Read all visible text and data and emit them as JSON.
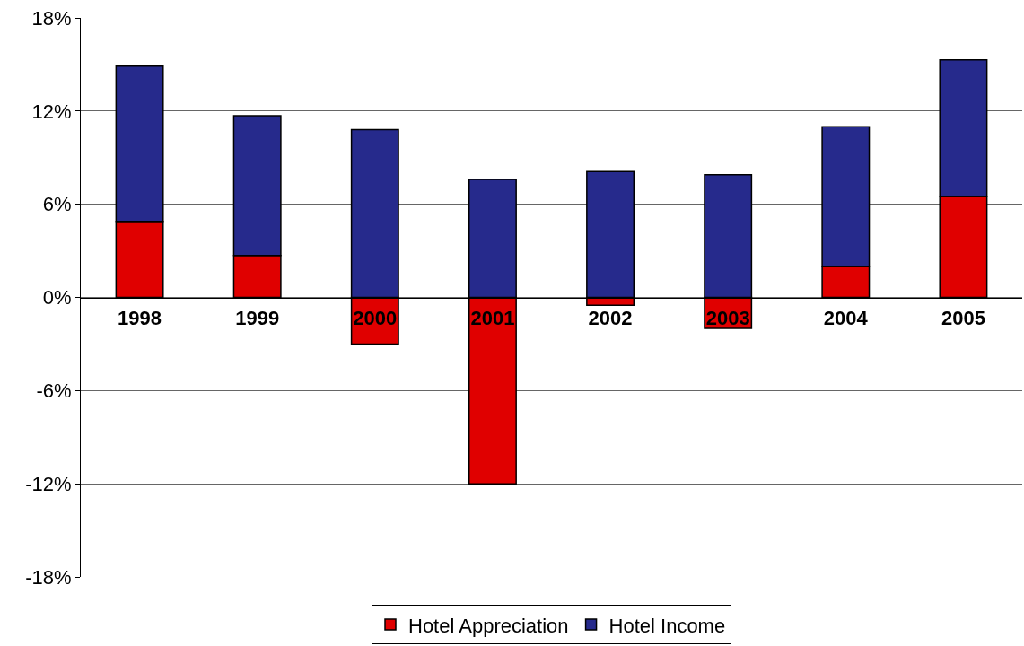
{
  "chart_data": {
    "type": "bar",
    "stacked": true,
    "categories": [
      "1998",
      "1999",
      "2000",
      "2001",
      "2002",
      "2003",
      "2004",
      "2005"
    ],
    "series": [
      {
        "name": "Hotel Appreciation",
        "color": "#e00000",
        "values": [
          4.9,
          2.7,
          -3.0,
          -12.0,
          -0.5,
          -2.0,
          2.0,
          6.5
        ]
      },
      {
        "name": "Hotel Income",
        "color": "#262a8c",
        "values": [
          10.0,
          9.0,
          10.8,
          7.6,
          8.1,
          7.9,
          9.0,
          8.8
        ]
      }
    ],
    "ylim": [
      -18,
      18
    ],
    "yticks": [
      {
        "value": -18,
        "label": "-18%"
      },
      {
        "value": -12,
        "label": "-12%"
      },
      {
        "value": -6,
        "label": "-6%"
      },
      {
        "value": 0,
        "label": "0%"
      },
      {
        "value": 6,
        "label": "6%"
      },
      {
        "value": 12,
        "label": "12%"
      },
      {
        "value": 18,
        "label": "18%"
      }
    ],
    "grid": "y",
    "legend": "bottom"
  }
}
